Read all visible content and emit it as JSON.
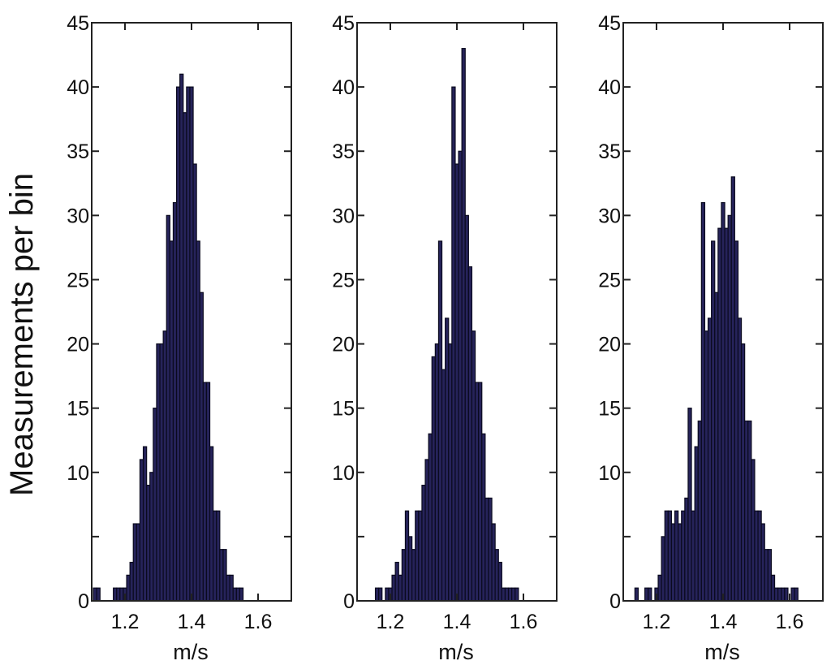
{
  "figure": {
    "ylabel": "Measurements per bin",
    "colors": {
      "bar_fill": "#26235a",
      "bar_edge": "#0a0a1e",
      "axis": "#222222"
    }
  },
  "chart_data": [
    {
      "type": "bar",
      "panel": "left",
      "xlabel": "m/s",
      "xlim": [
        1.1,
        1.7
      ],
      "ylim": [
        0,
        45
      ],
      "xticks": [
        1.2,
        1.4,
        1.6
      ],
      "xtick_labels": [
        "1.2",
        "1.4",
        "1.6"
      ],
      "yticks": [
        0,
        5,
        10,
        15,
        20,
        25,
        30,
        35,
        40,
        45
      ],
      "ytick_labels": [
        "0",
        "5",
        "10",
        "15",
        "20",
        "25",
        "30",
        "35",
        "40",
        "45"
      ],
      "ytick_draw_labels": [
        true,
        false,
        true,
        true,
        true,
        true,
        true,
        true,
        true,
        true
      ],
      "bin_width": 0.01,
      "x": [
        1.11,
        1.12,
        1.13,
        1.14,
        1.15,
        1.16,
        1.17,
        1.18,
        1.19,
        1.2,
        1.21,
        1.22,
        1.23,
        1.24,
        1.25,
        1.26,
        1.27,
        1.28,
        1.29,
        1.3,
        1.31,
        1.32,
        1.33,
        1.34,
        1.35,
        1.36,
        1.37,
        1.38,
        1.39,
        1.4,
        1.41,
        1.42,
        1.43,
        1.44,
        1.45,
        1.46,
        1.47,
        1.48,
        1.49,
        1.5,
        1.51,
        1.52,
        1.53,
        1.54,
        1.55,
        1.56,
        1.57,
        1.58,
        1.59,
        1.6
      ],
      "values": [
        1,
        1,
        0,
        0,
        0,
        0,
        1,
        1,
        1,
        1,
        2,
        3,
        6,
        6,
        11,
        12,
        9,
        10,
        15,
        20,
        20,
        21,
        30,
        28,
        31,
        40,
        41,
        38,
        40,
        40,
        34,
        28,
        24,
        17,
        17,
        12,
        7,
        7,
        4,
        4,
        2,
        2,
        1,
        1,
        1,
        0,
        0,
        0,
        0,
        0
      ]
    },
    {
      "type": "bar",
      "panel": "middle",
      "xlabel": "m/s",
      "xlim": [
        1.1,
        1.7
      ],
      "ylim": [
        0,
        45
      ],
      "xticks": [
        1.2,
        1.4,
        1.6
      ],
      "xtick_labels": [
        "1.2",
        "1.4",
        "1.6"
      ],
      "yticks": [
        0,
        5,
        10,
        15,
        20,
        25,
        30,
        35,
        40,
        45
      ],
      "ytick_labels": [
        "0",
        "5",
        "10",
        "15",
        "20",
        "25",
        "30",
        "35",
        "40",
        "45"
      ],
      "ytick_draw_labels": [
        true,
        false,
        true,
        true,
        true,
        true,
        true,
        true,
        true,
        true
      ],
      "bin_width": 0.01,
      "x": [
        1.16,
        1.17,
        1.18,
        1.19,
        1.2,
        1.21,
        1.22,
        1.23,
        1.24,
        1.25,
        1.26,
        1.27,
        1.28,
        1.29,
        1.3,
        1.31,
        1.32,
        1.33,
        1.34,
        1.35,
        1.36,
        1.37,
        1.38,
        1.39,
        1.4,
        1.41,
        1.42,
        1.43,
        1.44,
        1.45,
        1.46,
        1.47,
        1.48,
        1.49,
        1.5,
        1.51,
        1.52,
        1.53,
        1.54,
        1.55,
        1.56,
        1.57,
        1.58,
        1.59,
        1.6,
        1.61
      ],
      "values": [
        1,
        1,
        0,
        1,
        1,
        2,
        3,
        2,
        4,
        7,
        5,
        4,
        7,
        7,
        9,
        11,
        13,
        19,
        20,
        28,
        18,
        22,
        20,
        40,
        34,
        35,
        43,
        30,
        26,
        21,
        17,
        17,
        13,
        8,
        8,
        6,
        4,
        3,
        1,
        1,
        1,
        1,
        1,
        0,
        0,
        0
      ]
    },
    {
      "type": "bar",
      "panel": "right",
      "xlabel": "m/s",
      "xlim": [
        1.1,
        1.7
      ],
      "ylim": [
        0,
        45
      ],
      "xticks": [
        1.2,
        1.4,
        1.6
      ],
      "xtick_labels": [
        "1.2",
        "1.4",
        "1.6"
      ],
      "yticks": [
        0,
        5,
        10,
        15,
        20,
        25,
        30,
        35,
        40,
        45
      ],
      "ytick_labels": [
        "0",
        "5",
        "10",
        "15",
        "20",
        "25",
        "30",
        "35",
        "40",
        "45"
      ],
      "ytick_draw_labels": [
        true,
        false,
        true,
        true,
        true,
        true,
        true,
        true,
        true,
        true
      ],
      "bin_width": 0.01,
      "x": [
        1.14,
        1.15,
        1.16,
        1.17,
        1.18,
        1.19,
        1.2,
        1.21,
        1.22,
        1.23,
        1.24,
        1.25,
        1.26,
        1.27,
        1.28,
        1.29,
        1.3,
        1.31,
        1.32,
        1.33,
        1.34,
        1.35,
        1.36,
        1.37,
        1.38,
        1.39,
        1.4,
        1.41,
        1.42,
        1.43,
        1.44,
        1.45,
        1.46,
        1.47,
        1.48,
        1.49,
        1.5,
        1.51,
        1.52,
        1.53,
        1.54,
        1.55,
        1.56,
        1.57,
        1.58,
        1.59,
        1.6,
        1.61,
        1.62
      ],
      "values": [
        1,
        0,
        0,
        1,
        1,
        0,
        1,
        2,
        5,
        7,
        7,
        6,
        7,
        6,
        7,
        8,
        15,
        7,
        12,
        14,
        31,
        21,
        22,
        28,
        24,
        29,
        31,
        29,
        30,
        33,
        28,
        22,
        20,
        14,
        14,
        11,
        7,
        7,
        6,
        4,
        4,
        2,
        1,
        1,
        1,
        1,
        0,
        1,
        1
      ]
    }
  ]
}
